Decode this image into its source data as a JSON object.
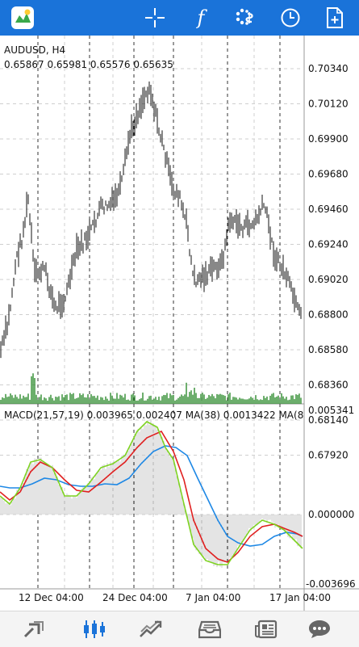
{
  "toolbar": {
    "icons": [
      "app-logo-icon",
      "crosshair-icon",
      "indicators-icon",
      "timeframe-icon",
      "clock-icon",
      "add-document-icon"
    ],
    "indicators_glyph": "f",
    "accent": "#1a73d9"
  },
  "chart": {
    "symbol_label": "AUDUSD, H4",
    "ohlc_label": "0.65867 0.65981 0.65576 0.65635",
    "price_labels": [
      "0.70340",
      "0.70120",
      "0.69900",
      "0.69680",
      "0.69460",
      "0.69240",
      "0.69020",
      "0.68800",
      "0.68580",
      "0.68360",
      "0.68140",
      "0.67920"
    ],
    "macd_label": "MACD(21,57,19) 0.003965 0.002407 MA(38) 0.0013422 MA(8",
    "macd_top": "0.005341",
    "macd_zero": "0.000000",
    "macd_bottom": "-0.003696",
    "date_labels": [
      "12 Dec 04:00",
      "24 Dec 04:00",
      "7 Jan 04:00",
      "17 Jan 04:00"
    ],
    "colors": {
      "candle": "#111111",
      "volume": "#2e8b2e",
      "macd_hist": "#c8c8c8",
      "line_green": "#7ed321",
      "line_red": "#e02020",
      "line_blue": "#1e88e5",
      "grid": "#cfcfcf"
    }
  },
  "bottom_nav": {
    "items": [
      "quotes-icon",
      "chart-icon",
      "trade-icon",
      "history-icon",
      "news-icon",
      "messages-icon"
    ],
    "active": "chart-icon"
  }
}
